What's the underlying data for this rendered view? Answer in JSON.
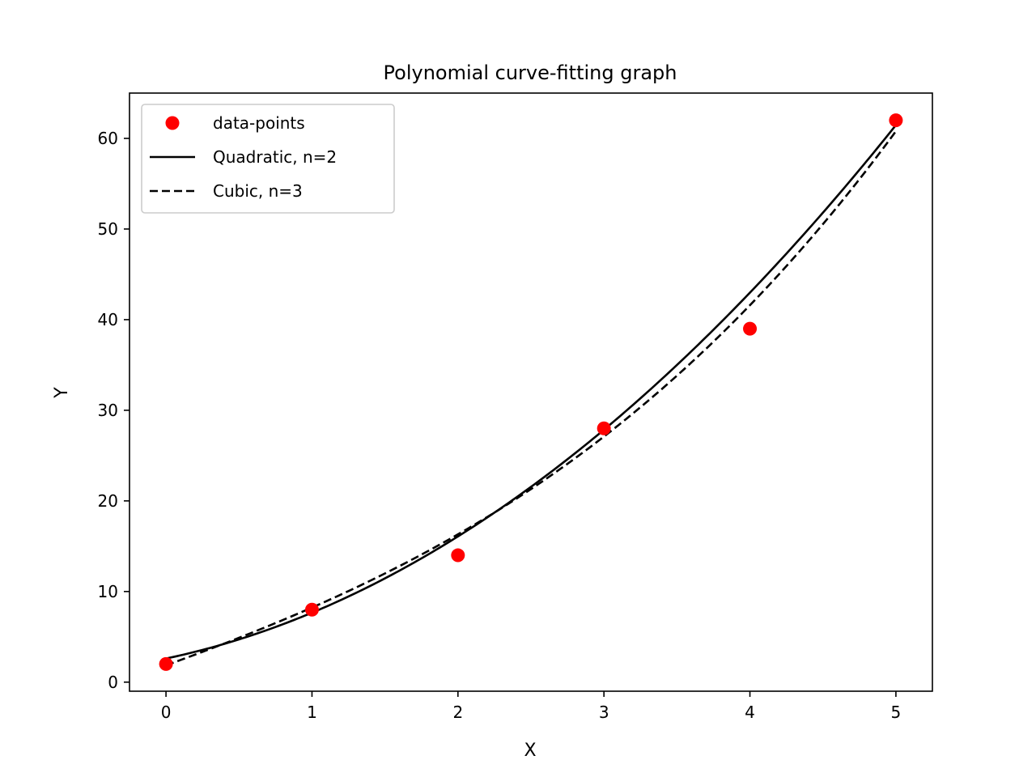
{
  "chart_data": {
    "type": "line",
    "title": "Polynomial curve-fitting graph",
    "xlabel": "X",
    "ylabel": "Y",
    "xlim": [
      -0.25,
      5.25
    ],
    "ylim": [
      -1,
      65
    ],
    "xticks": [
      0,
      1,
      2,
      3,
      4,
      5
    ],
    "yticks": [
      0,
      10,
      20,
      30,
      40,
      50,
      60
    ],
    "grid": false,
    "legend_position": "top-left",
    "points": {
      "name": "data-points",
      "color": "#ff0000",
      "x": [
        0,
        1,
        2,
        3,
        4,
        5
      ],
      "y": [
        2,
        8,
        14,
        28,
        39,
        62
      ]
    },
    "series": [
      {
        "name": "Quadratic, n=2",
        "style": "solid",
        "color": "#000000",
        "coefficients": [
          2.6071,
          3.3786,
          1.6786
        ],
        "x_range": [
          0,
          5
        ]
      },
      {
        "name": "Cubic, n=3",
        "style": "dashed",
        "color": "#000000",
        "coefficients": [
          1.8571,
          5.8532,
          0.3532,
          0.1667
        ],
        "x_range": [
          0,
          5
        ]
      }
    ]
  }
}
